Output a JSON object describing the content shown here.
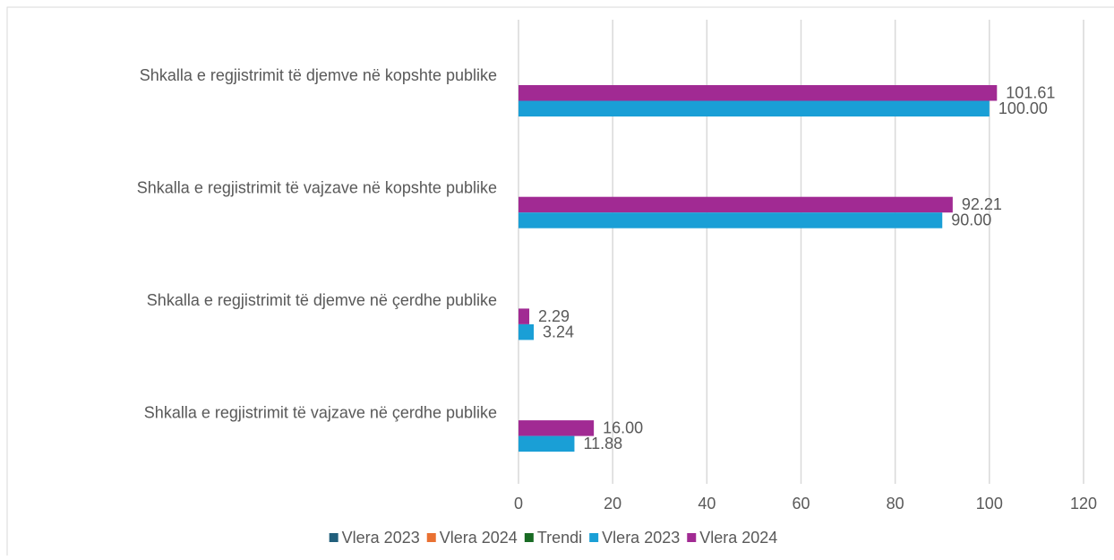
{
  "chart_data": {
    "type": "hbar",
    "categories": [
      "Shkalla e regjistrimit të djemve në kopshte publike",
      "Shkalla e regjistrimit të vajzave në kopshte publike",
      "Shkalla e regjistrimit të djemve në çerdhe publike",
      "Shkalla e regjistrimit të vajzave në çerdhe publike"
    ],
    "series": [
      {
        "name": "Vlera 2023",
        "color": "#215f7c",
        "values": [
          null,
          null,
          null,
          null
        ]
      },
      {
        "name": "Vlera 2024",
        "color": "#e97132",
        "values": [
          null,
          null,
          null,
          null
        ]
      },
      {
        "name": "Trendi",
        "color": "#196b24",
        "values": [
          null,
          null,
          null,
          null
        ]
      },
      {
        "name": "Vlera 2023",
        "color": "#1a9fd6",
        "values": [
          100,
          90,
          3.24,
          11.88
        ],
        "value_labels": [
          "100.00",
          "90.00",
          "3.24",
          "11.88"
        ]
      },
      {
        "name": "Vlera 2024",
        "color": "#a12a93",
        "values": [
          101.61,
          92.21,
          2.29,
          16
        ],
        "value_labels": [
          "101.61",
          "92.21",
          "2.29",
          "16.00"
        ]
      }
    ],
    "xlim": [
      0,
      120
    ],
    "xticks": [
      0,
      20,
      40,
      60,
      80,
      100,
      120
    ],
    "grid": true,
    "legend": "bottom"
  }
}
